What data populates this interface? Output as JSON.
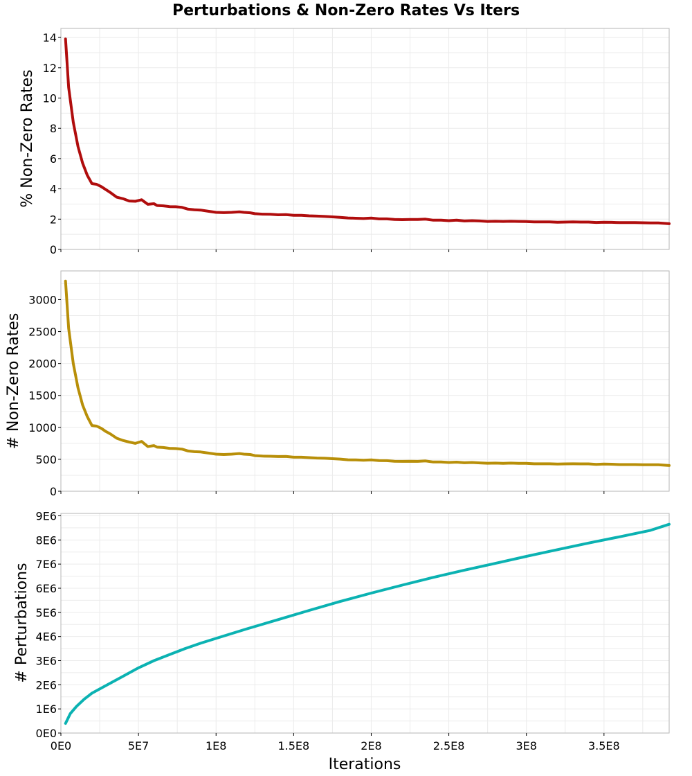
{
  "colors": {
    "panel1_line": "#b00d0d",
    "panel2_line": "#b88f09",
    "panel3_line": "#0bb2b2",
    "grid": "#ebebeb",
    "frame": "#b5b5b5"
  },
  "chart_data": {
    "type": "line",
    "title": "Perturbations & Non-Zero Rates Vs Iters",
    "xlabel": "Iterations",
    "xlim": [
      0,
      392000000
    ],
    "x_ticks": [
      0,
      50000000,
      100000000,
      150000000,
      200000000,
      250000000,
      300000000,
      350000000
    ],
    "x_tick_labels": [
      "0E0",
      "5E7",
      "1E8",
      "1.5E8",
      "2E8",
      "2.5E8",
      "3E8",
      "3.5E8"
    ],
    "grid": true,
    "panels": [
      {
        "ylabel": "% Non-Zero Rates",
        "ylim": [
          0,
          14.6
        ],
        "y_ticks": [
          0,
          2,
          4,
          6,
          8,
          10,
          12,
          14
        ],
        "y_tick_labels": [
          "0",
          "2",
          "4",
          "6",
          "8",
          "10",
          "12",
          "14"
        ],
        "series": [
          {
            "x": [
              3000000,
              5000000,
              8000000,
              11000000,
              14000000,
              17000000,
              20000000,
              23000000,
              26000000,
              29000000,
              32000000,
              36000000,
              40000000,
              44000000,
              48000000,
              52000000,
              56000000,
              60000000,
              62000000,
              66000000,
              70000000,
              74000000,
              78000000,
              82000000,
              86000000,
              90000000,
              95000000,
              100000000,
              105000000,
              110000000,
              115000000,
              118000000,
              122000000,
              125000000,
              130000000,
              135000000,
              140000000,
              145000000,
              150000000,
              155000000,
              160000000,
              165000000,
              170000000,
              175000000,
              180000000,
              185000000,
              190000000,
              195000000,
              200000000,
              205000000,
              210000000,
              215000000,
              220000000,
              225000000,
              230000000,
              235000000,
              240000000,
              245000000,
              250000000,
              255000000,
              260000000,
              265000000,
              270000000,
              275000000,
              280000000,
              285000000,
              290000000,
              295000000,
              300000000,
              305000000,
              310000000,
              315000000,
              320000000,
              325000000,
              330000000,
              335000000,
              340000000,
              345000000,
              350000000,
              355000000,
              360000000,
              365000000,
              370000000,
              375000000,
              380000000,
              385000000,
              392000000
            ],
            "y": [
              13.9,
              10.7,
              8.4,
              6.8,
              5.7,
              4.9,
              4.35,
              4.3,
              4.15,
              3.95,
              3.75,
              3.45,
              3.35,
              3.2,
              3.18,
              3.28,
              2.98,
              3.02,
              2.9,
              2.88,
              2.83,
              2.82,
              2.78,
              2.66,
              2.62,
              2.6,
              2.52,
              2.45,
              2.43,
              2.45,
              2.48,
              2.45,
              2.42,
              2.36,
              2.33,
              2.32,
              2.29,
              2.3,
              2.25,
              2.25,
              2.22,
              2.2,
              2.18,
              2.15,
              2.12,
              2.08,
              2.06,
              2.04,
              2.07,
              2.02,
              2.02,
              1.98,
              1.97,
              1.98,
              1.98,
              2.0,
              1.93,
              1.93,
              1.9,
              1.93,
              1.88,
              1.9,
              1.88,
              1.85,
              1.86,
              1.85,
              1.86,
              1.85,
              1.84,
              1.82,
              1.82,
              1.82,
              1.8,
              1.81,
              1.82,
              1.81,
              1.81,
              1.78,
              1.8,
              1.79,
              1.77,
              1.77,
              1.77,
              1.76,
              1.75,
              1.75,
              1.7
            ]
          }
        ]
      },
      {
        "ylabel": "# Non-Zero Rates",
        "ylim": [
          0,
          3450
        ],
        "y_ticks": [
          0,
          500,
          1000,
          1500,
          2000,
          2500,
          3000
        ],
        "y_tick_labels": [
          "0",
          "500",
          "1000",
          "1500",
          "2000",
          "2500",
          "3000"
        ],
        "series": [
          {
            "x": [
              3000000,
              5000000,
              8000000,
              11000000,
              14000000,
              17000000,
              20000000,
              23000000,
              26000000,
              29000000,
              32000000,
              36000000,
              40000000,
              44000000,
              48000000,
              52000000,
              56000000,
              60000000,
              62000000,
              66000000,
              70000000,
              74000000,
              78000000,
              82000000,
              86000000,
              90000000,
              95000000,
              100000000,
              105000000,
              110000000,
              115000000,
              118000000,
              122000000,
              125000000,
              130000000,
              135000000,
              140000000,
              145000000,
              150000000,
              155000000,
              160000000,
              165000000,
              170000000,
              175000000,
              180000000,
              185000000,
              190000000,
              195000000,
              200000000,
              205000000,
              210000000,
              215000000,
              220000000,
              225000000,
              230000000,
              235000000,
              240000000,
              245000000,
              250000000,
              255000000,
              260000000,
              265000000,
              270000000,
              275000000,
              280000000,
              285000000,
              290000000,
              295000000,
              300000000,
              305000000,
              310000000,
              315000000,
              320000000,
              325000000,
              330000000,
              335000000,
              340000000,
              345000000,
              350000000,
              355000000,
              360000000,
              365000000,
              370000000,
              375000000,
              380000000,
              385000000,
              392000000
            ],
            "y": [
              3290,
              2550,
              2000,
              1620,
              1350,
              1170,
              1030,
              1020,
              985,
              935,
              895,
              830,
              795,
              770,
              750,
              780,
              700,
              715,
              690,
              685,
              672,
              668,
              660,
              630,
              620,
              615,
              598,
              580,
              575,
              580,
              590,
              580,
              575,
              558,
              550,
              548,
              543,
              545,
              533,
              533,
              526,
              520,
              516,
              510,
              503,
              493,
              490,
              485,
              490,
              480,
              478,
              470,
              468,
              470,
              468,
              474,
              458,
              458,
              450,
              456,
              446,
              450,
              444,
              438,
              440,
              437,
              440,
              437,
              436,
              430,
              430,
              430,
              425,
              428,
              430,
              428,
              428,
              420,
              425,
              423,
              418,
              418,
              418,
              416,
              414,
              414,
              402
            ]
          }
        ]
      },
      {
        "ylabel": "# Perturbations",
        "ylim": [
          0,
          9100000
        ],
        "y_ticks": [
          0,
          1000000,
          2000000,
          3000000,
          4000000,
          5000000,
          6000000,
          7000000,
          8000000,
          9000000
        ],
        "y_tick_labels": [
          "0E0",
          "1E6",
          "2E6",
          "3E6",
          "4E6",
          "5E6",
          "6E6",
          "7E6",
          "8E6",
          "9E6"
        ],
        "series": [
          {
            "x": [
              3000000,
              6000000,
              10000000,
              15000000,
              20000000,
              30000000,
              40000000,
              50000000,
              60000000,
              70000000,
              80000000,
              90000000,
              100000000,
              120000000,
              140000000,
              160000000,
              180000000,
              200000000,
              220000000,
              240000000,
              260000000,
              280000000,
              300000000,
              320000000,
              340000000,
              360000000,
              380000000,
              392000000
            ],
            "y": [
              400000,
              800000,
              1100000,
              1400000,
              1650000,
              2000000,
              2350000,
              2700000,
              3000000,
              3250000,
              3500000,
              3720000,
              3920000,
              4320000,
              4700000,
              5080000,
              5450000,
              5800000,
              6130000,
              6450000,
              6750000,
              7030000,
              7320000,
              7600000,
              7870000,
              8130000,
              8400000,
              8650000
            ]
          }
        ]
      }
    ]
  }
}
